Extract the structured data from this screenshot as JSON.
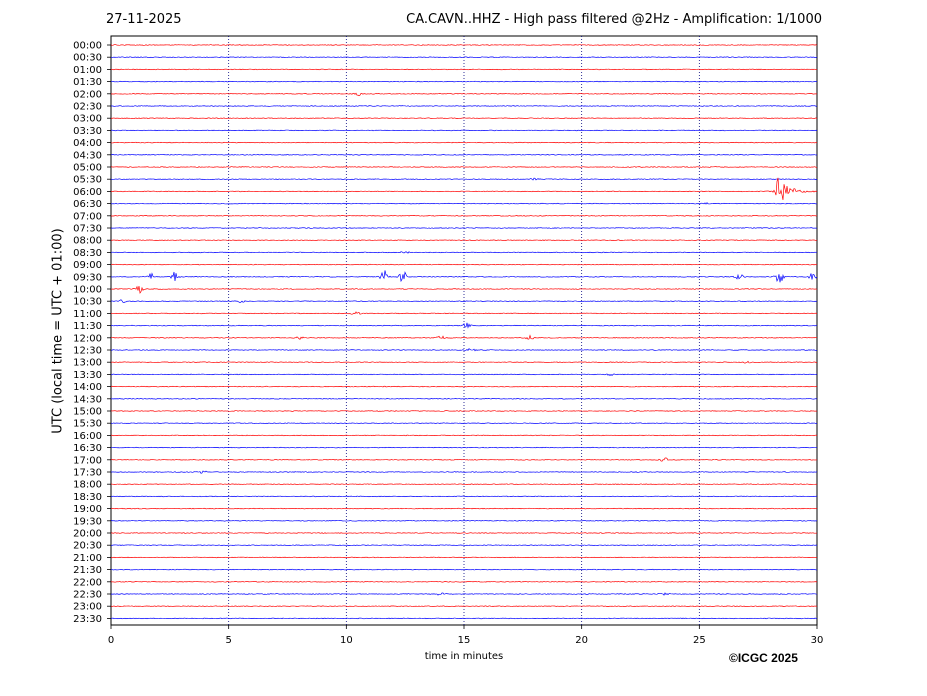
{
  "header": {
    "date": "27-11-2025",
    "title": "CA.CAVN..HHZ - High pass filtered @2Hz - Amplification: 1/1000"
  },
  "copyright": "©ICGC 2025",
  "colors": {
    "odd_trace": "#ff0000",
    "even_trace": "#0000ff",
    "grid": "#00007f"
  },
  "chart_data": {
    "type": "line",
    "title": "CA.CAVN..HHZ - High pass filtered @2Hz - Amplification: 1/1000",
    "xlabel": "time in minutes",
    "ylabel": "UTC (local time = UTC + 01:00)",
    "xlim": [
      0,
      30
    ],
    "x_ticks": [
      0,
      5,
      10,
      15,
      20,
      25,
      30
    ],
    "vertical_grid": true,
    "rows": [
      "00:00",
      "00:30",
      "01:00",
      "01:30",
      "02:00",
      "02:30",
      "03:00",
      "03:30",
      "04:00",
      "04:30",
      "05:00",
      "05:30",
      "06:00",
      "06:30",
      "07:00",
      "07:30",
      "08:00",
      "08:30",
      "09:00",
      "09:30",
      "10:00",
      "10:30",
      "11:00",
      "11:30",
      "12:00",
      "12:30",
      "13:00",
      "13:30",
      "14:00",
      "14:30",
      "15:00",
      "15:30",
      "16:00",
      "16:30",
      "17:00",
      "17:30",
      "18:00",
      "18:30",
      "19:00",
      "19:30",
      "20:00",
      "20:30",
      "21:00",
      "21:30",
      "22:00",
      "22:30",
      "23:00",
      "23:30"
    ],
    "events": [
      {
        "row": "02:00",
        "minute": 10.5,
        "amplitude": 0.15
      },
      {
        "row": "05:30",
        "minute": 18.0,
        "amplitude": 0.1
      },
      {
        "row": "06:00",
        "minute": 28.3,
        "amplitude": 1.8
      },
      {
        "row": "06:30",
        "minute": 25.2,
        "amplitude": 0.1
      },
      {
        "row": "08:30",
        "minute": 12.5,
        "amplitude": 0.2
      },
      {
        "row": "09:30",
        "minute": 1.7,
        "amplitude": 0.3
      },
      {
        "row": "09:30",
        "minute": 2.7,
        "amplitude": 0.4
      },
      {
        "row": "09:30",
        "minute": 11.6,
        "amplitude": 0.6
      },
      {
        "row": "09:30",
        "minute": 12.4,
        "amplitude": 0.6
      },
      {
        "row": "09:30",
        "minute": 26.7,
        "amplitude": 0.4
      },
      {
        "row": "09:30",
        "minute": 28.4,
        "amplitude": 0.7
      },
      {
        "row": "09:30",
        "minute": 29.8,
        "amplitude": 0.3
      },
      {
        "row": "10:00",
        "minute": 1.2,
        "amplitude": 0.5
      },
      {
        "row": "10:30",
        "minute": 0.5,
        "amplitude": 0.15
      },
      {
        "row": "10:30",
        "minute": 5.5,
        "amplitude": 0.15
      },
      {
        "row": "11:00",
        "minute": 10.4,
        "amplitude": 0.25
      },
      {
        "row": "11:30",
        "minute": 15.1,
        "amplitude": 0.3
      },
      {
        "row": "12:00",
        "minute": 8.0,
        "amplitude": 0.2
      },
      {
        "row": "12:00",
        "minute": 14.0,
        "amplitude": 0.2
      },
      {
        "row": "12:00",
        "minute": 17.8,
        "amplitude": 0.2
      },
      {
        "row": "12:30",
        "minute": 15.3,
        "amplitude": 0.2
      },
      {
        "row": "13:00",
        "minute": 27.0,
        "amplitude": 0.15
      },
      {
        "row": "13:30",
        "minute": 21.2,
        "amplitude": 0.1
      },
      {
        "row": "17:00",
        "minute": 23.5,
        "amplitude": 0.2
      },
      {
        "row": "17:30",
        "minute": 3.9,
        "amplitude": 0.12
      },
      {
        "row": "22:30",
        "minute": 14.0,
        "amplitude": 0.12
      },
      {
        "row": "22:30",
        "minute": 23.5,
        "amplitude": 0.12
      }
    ]
  }
}
